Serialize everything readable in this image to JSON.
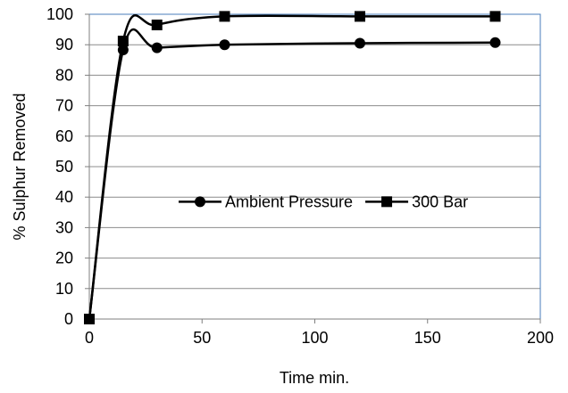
{
  "chart_data": {
    "type": "line",
    "title": "",
    "xlabel": "Time min.",
    "ylabel": "% Sulphur Removed",
    "xlim": [
      0,
      200
    ],
    "ylim": [
      0,
      100
    ],
    "x_ticks": [
      0,
      50,
      100,
      150,
      200
    ],
    "y_ticks": [
      0,
      10,
      20,
      30,
      40,
      50,
      60,
      70,
      80,
      90,
      100
    ],
    "grid": "horizontal",
    "legend_position": "center-right",
    "smooth": true,
    "series": [
      {
        "name": "Ambient Pressure",
        "marker": "circle",
        "color": "#000000",
        "x": [
          0,
          15,
          30,
          60,
          120,
          180
        ],
        "y": [
          0,
          88.3,
          89,
          90,
          90.5,
          90.7
        ]
      },
      {
        "name": "300 Bar",
        "marker": "square",
        "color": "#000000",
        "x": [
          0,
          15,
          30,
          60,
          120,
          180
        ],
        "y": [
          0,
          91.2,
          96.5,
          99.3,
          99.3,
          99.3
        ]
      }
    ]
  },
  "colors": {
    "plot_border": "#4a7ebb",
    "grid": "#8c8c8c",
    "series": "#000000"
  }
}
